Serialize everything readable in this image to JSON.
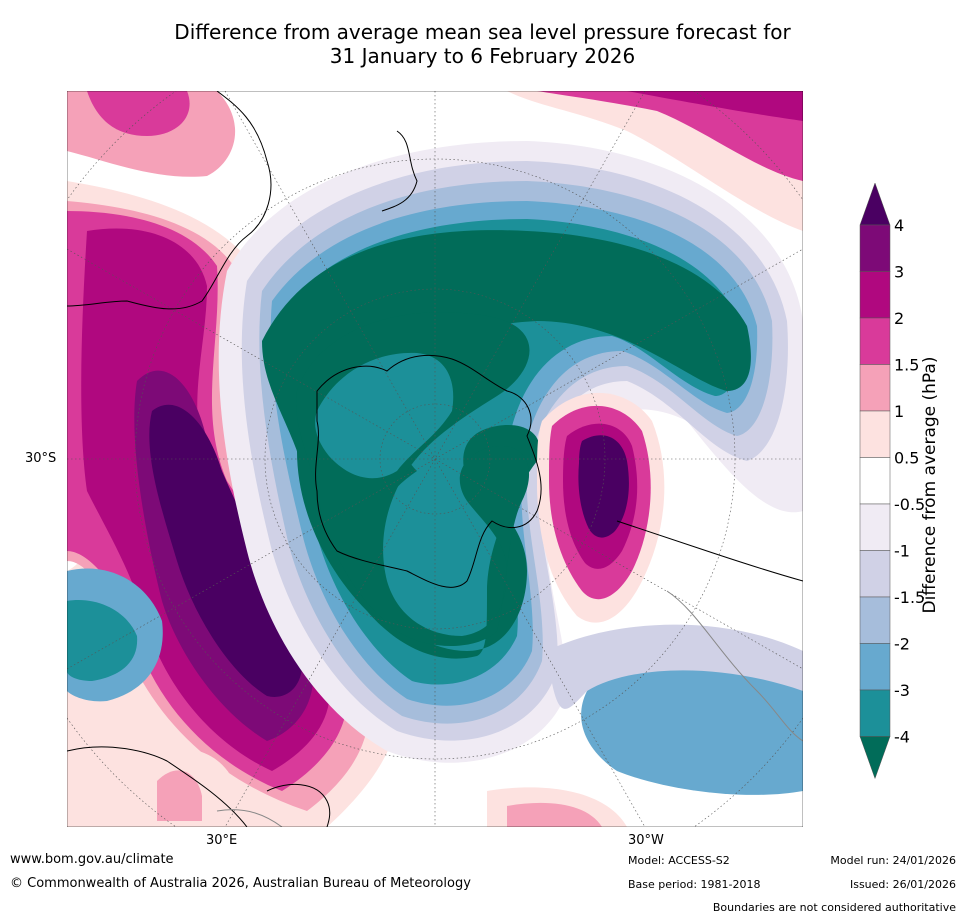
{
  "title": {
    "line1": "Difference from average mean sea level pressure forecast for",
    "line2": "31 January to 6 February 2026"
  },
  "map": {
    "projection": "south-polar-stereographic",
    "lat_label": "30°S",
    "lon_labels": [
      "30°E",
      "30°W"
    ]
  },
  "colorbar": {
    "label": "Difference from average (hPa)",
    "ticks": [
      "4",
      "3",
      "2",
      "1.5",
      "1",
      "0.5",
      "-0.5",
      "-1",
      "-1.5",
      "-2",
      "-3",
      "-4"
    ],
    "colors": [
      "#4a0062",
      "#7d0a77",
      "#b0087f",
      "#d93a9a",
      "#f5a1b8",
      "#fde2e0",
      "#ffffff",
      "#f0ebf4",
      "#d0d1e6",
      "#a6bddb",
      "#67a9cf",
      "#1c9099",
      "#016c59"
    ]
  },
  "footer": {
    "website": "www.bom.gov.au/climate",
    "copyright": "© Commonwealth of Australia 2026, Australian Bureau of Meteorology",
    "model": "Model: ACCESS-S2",
    "base_period": "Base period: 1981-2018",
    "model_run": "Model run: 24/01/2026",
    "issued": "Issued: 26/01/2026",
    "disclaimer": "Boundaries are not considered authoritative"
  }
}
